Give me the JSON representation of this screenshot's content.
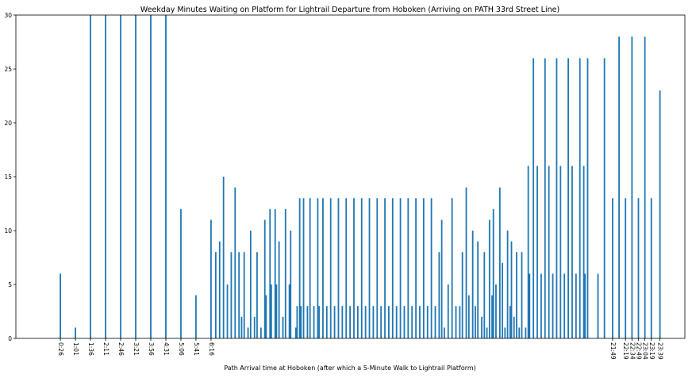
{
  "chart_data": {
    "type": "bar",
    "title": "Weekday Minutes Waiting on Platform for Lightrail Departure from Hoboken (Arriving on PATH 33rd Street Line)",
    "xlabel": "Path Arrival time at Hoboken (after which a 5-Minute Walk to Lightrail Platform)",
    "ylabel": "",
    "ylim": [
      0,
      30
    ],
    "xlim": [
      0,
      24
    ],
    "yticks": [
      0,
      5,
      10,
      15,
      20,
      25,
      30
    ],
    "grid": false,
    "bar_color": "#1f77b4",
    "x_tick_labels": [
      {
        "x": 0.4333,
        "label": "0:26"
      },
      {
        "x": 1.0167,
        "label": "1:01"
      },
      {
        "x": 1.6,
        "label": "1:36"
      },
      {
        "x": 2.1833,
        "label": "2:11"
      },
      {
        "x": 2.7667,
        "label": "2:46"
      },
      {
        "x": 3.35,
        "label": "3:21"
      },
      {
        "x": 3.9333,
        "label": "3:56"
      },
      {
        "x": 4.5167,
        "label": "4:31"
      },
      {
        "x": 5.1,
        "label": "5:06"
      },
      {
        "x": 5.6833,
        "label": "5:41"
      },
      {
        "x": 6.2667,
        "label": "6:16"
      },
      {
        "x": 21.8167,
        "label": "21:49"
      },
      {
        "x": 22.3167,
        "label": "22:19"
      },
      {
        "x": 22.5667,
        "label": "22:34"
      },
      {
        "x": 22.8167,
        "label": "22:49"
      },
      {
        "x": 23.0667,
        "label": "23:04"
      },
      {
        "x": 23.3167,
        "label": "23:19"
      },
      {
        "x": 23.65,
        "label": "23:39"
      }
    ],
    "series": [
      {
        "x": [
          0.4333,
          1.0167,
          1.6,
          2.1833,
          2.7667,
          3.35,
          3.9333,
          4.5167,
          5.1,
          5.6833,
          6.2667,
          6.45,
          6.6,
          6.75,
          6.9,
          7.05,
          7.2,
          7.35,
          7.45,
          7.55,
          7.7,
          7.8,
          7.95,
          8.05,
          8.2,
          8.35,
          8.4,
          8.55,
          8.6,
          8.75,
          8.8,
          8.9,
          9.05,
          9.15,
          9.3,
          9.35,
          9.55,
          9.6,
          9.7,
          9.75,
          9.85,
          10.0,
          10.1,
          10.25,
          10.4,
          10.45,
          10.6,
          10.75,
          10.9,
          11.05,
          11.2,
          11.35,
          11.5,
          11.65,
          11.8,
          11.95,
          12.1,
          12.25,
          12.4,
          12.55,
          12.7,
          12.85,
          13.0,
          13.15,
          13.3,
          13.45,
          13.6,
          13.75,
          13.9,
          14.05,
          14.2,
          14.35,
          14.5,
          14.65,
          14.8,
          14.95,
          15.1,
          15.2,
          15.3,
          15.45,
          15.6,
          15.75,
          15.9,
          16.0,
          16.15,
          16.25,
          16.4,
          16.5,
          16.6,
          16.75,
          16.85,
          16.95,
          17.05,
          17.15,
          17.2,
          17.3,
          17.45,
          17.55,
          17.65,
          17.75,
          17.85,
          17.9,
          18.0,
          18.1,
          18.2,
          18.3,
          18.45,
          18.55,
          18.6,
          18.75,
          18.9,
          19.05,
          19.2,
          19.35,
          19.5,
          19.65,
          19.8,
          19.95,
          20.1,
          20.25,
          20.4,
          20.55,
          20.7,
          20.75,
          20.85,
          21.25,
          21.5,
          21.8167,
          22.0667,
          22.3167,
          22.5667,
          22.8167,
          23.0667,
          23.3167,
          23.65
        ],
        "values": [
          6,
          1,
          30,
          30,
          30,
          30,
          30,
          30,
          12,
          4,
          11,
          8,
          9,
          15,
          5,
          8,
          14,
          8,
          2,
          8,
          1,
          10,
          2,
          8,
          1,
          11,
          4,
          12,
          5,
          12,
          5,
          9,
          2,
          12,
          5,
          10,
          1,
          3,
          13,
          3,
          13,
          3,
          13,
          3,
          13,
          3,
          13,
          3,
          13,
          3,
          13,
          3,
          13,
          3,
          13,
          3,
          13,
          3,
          13,
          3,
          13,
          3,
          13,
          3,
          13,
          3,
          13,
          3,
          13,
          3,
          13,
          3,
          13,
          3,
          13,
          3,
          8,
          11,
          1,
          5,
          13,
          3,
          3,
          8,
          14,
          4,
          10,
          3,
          9,
          2,
          8,
          1,
          11,
          4,
          12,
          5,
          14,
          7,
          1,
          10,
          3,
          9,
          2,
          8,
          1,
          8,
          1,
          16,
          6,
          26,
          16,
          6,
          26,
          16,
          6,
          26,
          16,
          6,
          26,
          16,
          6,
          26,
          16,
          6,
          26,
          6,
          26,
          13,
          28,
          13,
          28,
          13,
          28,
          13,
          23
        ]
      }
    ]
  }
}
